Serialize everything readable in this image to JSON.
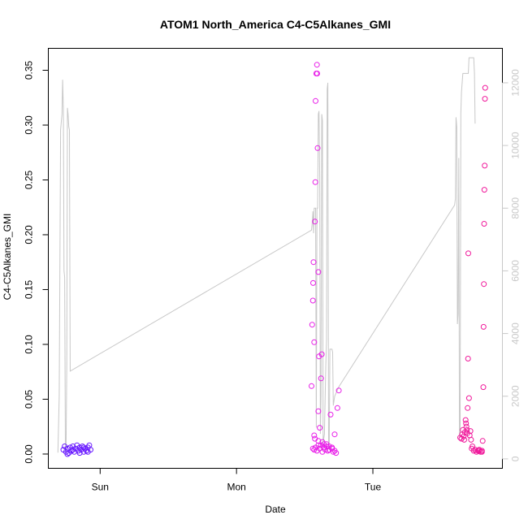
{
  "chart_data": {
    "type": "scatter",
    "title": "ATOM1 North_America C4-C5Alkanes_GMI",
    "xlabel": "Date",
    "ylabel": "C4-C5Alkanes_GMI",
    "x_ticks": [
      "Sun",
      "Mon",
      "Tue"
    ],
    "x_tick_positions": [
      1,
      2,
      3
    ],
    "xlim": [
      0.62,
      3.95
    ],
    "ylim": [
      -0.013,
      0.37
    ],
    "y_ticks": [
      0.0,
      0.05,
      0.1,
      0.15,
      0.2,
      0.25,
      0.3,
      0.35
    ],
    "y_tick_labels": [
      "0.00",
      "0.05",
      "0.10",
      "0.15",
      "0.20",
      "0.25",
      "0.30",
      "0.35"
    ],
    "y2lim": [
      -300,
      13100
    ],
    "y2_ticks": [
      0,
      2000,
      4000,
      6000,
      8000,
      10000,
      12000
    ],
    "y2_tick_labels": [
      "0",
      "2000",
      "4000",
      "6000",
      "8000",
      "10000",
      "12000"
    ],
    "grid": false,
    "colors": {
      "points_sun": "#6a1bff",
      "points_mon": "#e81ee8",
      "points_tue": "#f0199b",
      "line": "#c8c8c8"
    },
    "series": [
      {
        "kind": "points",
        "values": [
          {
            "x": 0.73,
            "y": 0.004
          },
          {
            "x": 0.74,
            "y": 0.007
          },
          {
            "x": 0.75,
            "y": 0.002
          },
          {
            "x": 0.76,
            "y": 0.005
          },
          {
            "x": 0.77,
            "y": 0.001
          },
          {
            "x": 0.78,
            "y": 0.006
          },
          {
            "x": 0.79,
            "y": 0.003
          },
          {
            "x": 0.8,
            "y": 0.007
          },
          {
            "x": 0.81,
            "y": 0.002
          },
          {
            "x": 0.82,
            "y": 0.005
          },
          {
            "x": 0.83,
            "y": 0.008
          },
          {
            "x": 0.84,
            "y": 0.003
          },
          {
            "x": 0.85,
            "y": 0.006
          },
          {
            "x": 0.86,
            "y": 0.004
          },
          {
            "x": 0.87,
            "y": 0.007
          },
          {
            "x": 0.88,
            "y": 0.002
          },
          {
            "x": 0.89,
            "y": 0.005
          },
          {
            "x": 0.9,
            "y": 0.003
          },
          {
            "x": 0.91,
            "y": 0.006
          },
          {
            "x": 0.92,
            "y": 0.008
          },
          {
            "x": 0.93,
            "y": 0.004
          },
          {
            "x": 0.76,
            "y": 0.0
          },
          {
            "x": 0.8,
            "y": 0.004
          },
          {
            "x": 0.85,
            "y": 0.001
          },
          {
            "x": 0.88,
            "y": 0.006
          },
          {
            "x": 0.91,
            "y": 0.002
          }
        ]
      },
      {
        "kind": "points",
        "values": [
          {
            "x": 2.55,
            "y": 0.062
          },
          {
            "x": 2.555,
            "y": 0.118
          },
          {
            "x": 2.56,
            "y": 0.14
          },
          {
            "x": 2.562,
            "y": 0.156
          },
          {
            "x": 2.565,
            "y": 0.175
          },
          {
            "x": 2.57,
            "y": 0.102
          },
          {
            "x": 2.575,
            "y": 0.212
          },
          {
            "x": 2.578,
            "y": 0.248
          },
          {
            "x": 2.58,
            "y": 0.322
          },
          {
            "x": 2.585,
            "y": 0.347
          },
          {
            "x": 2.59,
            "y": 0.355
          },
          {
            "x": 2.592,
            "y": 0.347
          },
          {
            "x": 2.595,
            "y": 0.279
          },
          {
            "x": 2.6,
            "y": 0.166
          },
          {
            "x": 2.605,
            "y": 0.089
          },
          {
            "x": 2.6,
            "y": 0.039
          },
          {
            "x": 2.61,
            "y": 0.024
          },
          {
            "x": 2.62,
            "y": 0.069
          },
          {
            "x": 2.625,
            "y": 0.091
          },
          {
            "x": 2.57,
            "y": 0.017
          },
          {
            "x": 2.575,
            "y": 0.014
          },
          {
            "x": 2.58,
            "y": 0.006
          },
          {
            "x": 2.59,
            "y": 0.003
          },
          {
            "x": 2.6,
            "y": 0.012
          },
          {
            "x": 2.61,
            "y": 0.005
          },
          {
            "x": 2.62,
            "y": 0.008
          },
          {
            "x": 2.63,
            "y": 0.002
          },
          {
            "x": 2.64,
            "y": 0.006
          },
          {
            "x": 2.65,
            "y": 0.004
          },
          {
            "x": 2.66,
            "y": 0.009
          },
          {
            "x": 2.67,
            "y": 0.003
          },
          {
            "x": 2.68,
            "y": 0.007
          },
          {
            "x": 2.69,
            "y": 0.036
          },
          {
            "x": 2.7,
            "y": 0.005
          },
          {
            "x": 2.71,
            "y": 0.002
          },
          {
            "x": 2.72,
            "y": 0.018
          },
          {
            "x": 2.73,
            "y": 0.001
          },
          {
            "x": 2.74,
            "y": 0.042
          },
          {
            "x": 2.75,
            "y": 0.058
          },
          {
            "x": 2.56,
            "y": 0.005
          },
          {
            "x": 2.57,
            "y": 0.004
          },
          {
            "x": 2.6,
            "y": 0.008
          },
          {
            "x": 2.63,
            "y": 0.011
          },
          {
            "x": 2.64,
            "y": 0.009
          },
          {
            "x": 2.66,
            "y": 0.007
          },
          {
            "x": 2.68,
            "y": 0.004
          },
          {
            "x": 2.7,
            "y": 0.006
          },
          {
            "x": 2.72,
            "y": 0.003
          }
        ]
      },
      {
        "kind": "points",
        "values": [
          {
            "x": 3.64,
            "y": 0.015
          },
          {
            "x": 3.65,
            "y": 0.014
          },
          {
            "x": 3.655,
            "y": 0.018
          },
          {
            "x": 3.66,
            "y": 0.022
          },
          {
            "x": 3.665,
            "y": 0.016
          },
          {
            "x": 3.67,
            "y": 0.013
          },
          {
            "x": 3.675,
            "y": 0.02
          },
          {
            "x": 3.68,
            "y": 0.031
          },
          {
            "x": 3.683,
            "y": 0.028
          },
          {
            "x": 3.686,
            "y": 0.025
          },
          {
            "x": 3.69,
            "y": 0.022
          },
          {
            "x": 3.693,
            "y": 0.019
          },
          {
            "x": 3.695,
            "y": 0.042
          },
          {
            "x": 3.698,
            "y": 0.087
          },
          {
            "x": 3.7,
            "y": 0.183
          },
          {
            "x": 3.705,
            "y": 0.051
          },
          {
            "x": 3.71,
            "y": 0.017
          },
          {
            "x": 3.715,
            "y": 0.021
          },
          {
            "x": 3.72,
            "y": 0.013
          },
          {
            "x": 3.725,
            "y": 0.005
          },
          {
            "x": 3.73,
            "y": 0.007
          },
          {
            "x": 3.74,
            "y": 0.003
          },
          {
            "x": 3.75,
            "y": 0.004
          },
          {
            "x": 3.76,
            "y": 0.002
          },
          {
            "x": 3.77,
            "y": 0.003
          },
          {
            "x": 3.78,
            "y": 0.004
          },
          {
            "x": 3.79,
            "y": 0.002
          },
          {
            "x": 3.8,
            "y": 0.003
          },
          {
            "x": 3.805,
            "y": 0.012
          },
          {
            "x": 3.81,
            "y": 0.061
          },
          {
            "x": 3.812,
            "y": 0.116
          },
          {
            "x": 3.814,
            "y": 0.155
          },
          {
            "x": 3.816,
            "y": 0.21
          },
          {
            "x": 3.818,
            "y": 0.241
          },
          {
            "x": 3.82,
            "y": 0.263
          },
          {
            "x": 3.822,
            "y": 0.324
          },
          {
            "x": 3.824,
            "y": 0.334
          },
          {
            "x": 3.8,
            "y": 0.002
          },
          {
            "x": 3.78,
            "y": 0.003
          }
        ]
      },
      {
        "kind": "line",
        "axis": "right",
        "points": [
          {
            "x": 0.69,
            "y": 200
          },
          {
            "x": 0.7,
            "y": 2000
          },
          {
            "x": 0.71,
            "y": 10500
          },
          {
            "x": 0.72,
            "y": 11000
          },
          {
            "x": 0.725,
            "y": 12100
          },
          {
            "x": 0.73,
            "y": 11200
          },
          {
            "x": 0.735,
            "y": 6000
          },
          {
            "x": 0.74,
            "y": 5800
          },
          {
            "x": 0.745,
            "y": 300
          },
          {
            "x": 0.75,
            "y": 200
          },
          {
            "x": 0.755,
            "y": 3000
          },
          {
            "x": 0.76,
            "y": 11200
          },
          {
            "x": 0.765,
            "y": 11000
          },
          {
            "x": 0.77,
            "y": 10600
          },
          {
            "x": 0.775,
            "y": 10500
          },
          {
            "x": 0.78,
            "y": 2800
          },
          {
            "x": 2.55,
            "y": 7300
          },
          {
            "x": 2.555,
            "y": 7500
          },
          {
            "x": 2.56,
            "y": 7900
          },
          {
            "x": 2.565,
            "y": 7200
          },
          {
            "x": 2.57,
            "y": 8000
          },
          {
            "x": 2.58,
            "y": 8000
          },
          {
            "x": 2.585,
            "y": 1000
          },
          {
            "x": 2.59,
            "y": 8000
          },
          {
            "x": 2.595,
            "y": 8000
          },
          {
            "x": 2.6,
            "y": 11000
          },
          {
            "x": 2.605,
            "y": 11100
          },
          {
            "x": 2.61,
            "y": 9000
          },
          {
            "x": 2.615,
            "y": 800
          },
          {
            "x": 2.62,
            "y": 2000
          },
          {
            "x": 2.625,
            "y": 11000
          },
          {
            "x": 2.63,
            "y": 10800
          },
          {
            "x": 2.635,
            "y": 500
          },
          {
            "x": 2.645,
            "y": 800
          },
          {
            "x": 2.65,
            "y": 2000
          },
          {
            "x": 2.655,
            "y": 3000
          },
          {
            "x": 2.66,
            "y": 3800
          },
          {
            "x": 2.665,
            "y": 11800
          },
          {
            "x": 2.67,
            "y": 12000
          },
          {
            "x": 2.675,
            "y": 400
          },
          {
            "x": 2.68,
            "y": 300
          },
          {
            "x": 2.685,
            "y": 3500
          },
          {
            "x": 2.7,
            "y": 3500
          },
          {
            "x": 2.705,
            "y": 3400
          },
          {
            "x": 2.71,
            "y": 1700
          },
          {
            "x": 2.72,
            "y": 2000
          },
          {
            "x": 2.75,
            "y": 2300
          },
          {
            "x": 3.6,
            "y": 8100
          },
          {
            "x": 3.605,
            "y": 8300
          },
          {
            "x": 3.61,
            "y": 10900
          },
          {
            "x": 3.615,
            "y": 10600
          },
          {
            "x": 3.62,
            "y": 4300
          },
          {
            "x": 3.625,
            "y": 4600
          },
          {
            "x": 3.63,
            "y": 9600
          },
          {
            "x": 3.635,
            "y": 700
          },
          {
            "x": 3.64,
            "y": 900
          },
          {
            "x": 3.645,
            "y": 11000
          },
          {
            "x": 3.65,
            "y": 11700
          },
          {
            "x": 3.66,
            "y": 12300
          },
          {
            "x": 3.7,
            "y": 12300
          },
          {
            "x": 3.705,
            "y": 12800
          },
          {
            "x": 3.74,
            "y": 12800
          },
          {
            "x": 3.745,
            "y": 12300
          },
          {
            "x": 3.75,
            "y": 10700
          }
        ]
      }
    ]
  }
}
